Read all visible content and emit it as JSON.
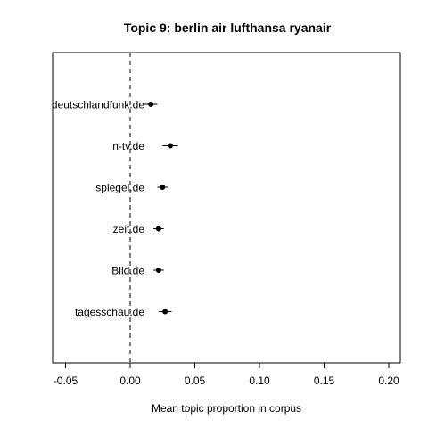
{
  "chart_data": {
    "type": "scatter",
    "title": "Topic 9: berlin air lufthansa ryanair",
    "xlabel": "Mean topic proportion in corpus",
    "ylabel": "",
    "xlim": [
      -0.055,
      0.21
    ],
    "xticks": [
      "-0.05",
      "0.00",
      "0.05",
      "0.10",
      "0.15",
      "0.20"
    ],
    "reference_line": 0,
    "points": [
      {
        "label": "deutschlandfunk.de",
        "x": 0.016,
        "lo": 0.011,
        "hi": 0.021
      },
      {
        "label": "n-tv.de",
        "x": 0.031,
        "lo": 0.025,
        "hi": 0.037
      },
      {
        "label": "spiegel.de",
        "x": 0.025,
        "lo": 0.021,
        "hi": 0.029
      },
      {
        "label": "zeit.de",
        "x": 0.022,
        "lo": 0.018,
        "hi": 0.026
      },
      {
        "label": "Bild.de",
        "x": 0.022,
        "lo": 0.018,
        "hi": 0.026
      },
      {
        "label": "tagesschau.de",
        "x": 0.027,
        "lo": 0.022,
        "hi": 0.032
      }
    ]
  }
}
